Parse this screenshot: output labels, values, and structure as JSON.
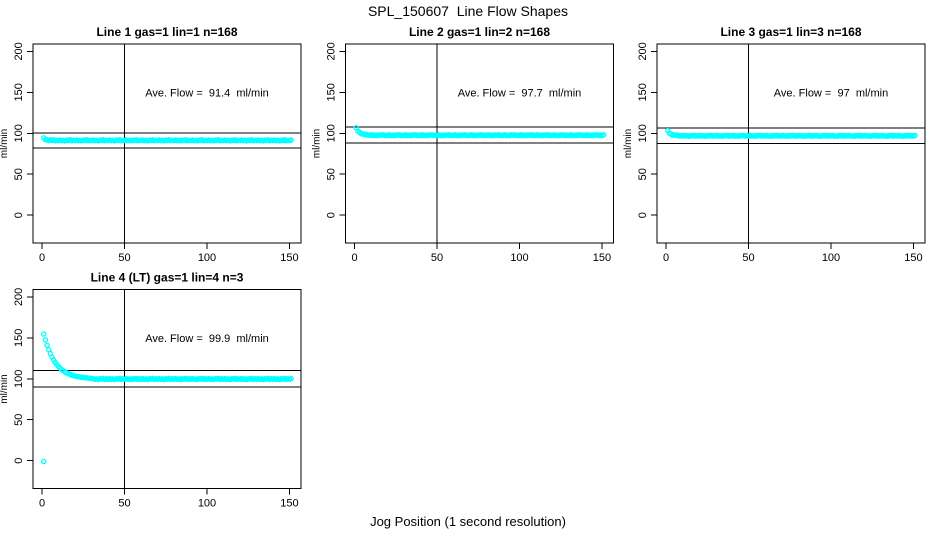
{
  "chart_data": {
    "type": "scatter",
    "title": "SPL_150607  Line Flow Shapes",
    "xlabel": "Jog Position (1 second resolution)",
    "ylabel": "ml/min",
    "point_color": "#00FFFF",
    "axis_color": "#000000",
    "background_color": "#FFFFFF",
    "xlim": [
      -5.5,
      157
    ],
    "ylim": [
      -34,
      209
    ],
    "x_ticks": [
      0,
      50,
      100,
      150
    ],
    "y_ticks": [
      0,
      50,
      100,
      150,
      200
    ],
    "x_tick_labels": [
      "0",
      "50",
      "100",
      "150"
    ],
    "y_tick_labels": [
      "0",
      "50",
      "100",
      "150",
      "200"
    ],
    "grid": false,
    "legend": "none",
    "vline_x": 50,
    "annotation_xy": [
      100,
      150
    ],
    "panels": [
      {
        "title": "Line 1 gas=1 lin=1 n=168",
        "ave_flow": 91.4,
        "ave_flow_label": "Ave. Flow =  91.4  ml/min",
        "hline_upper": 100.5,
        "hline_lower": 82.3,
        "series": {
          "x_start": 1,
          "x_step": 1,
          "y": [
            94.3,
            92.2,
            92.1,
            91.0,
            91.9,
            91.3,
            92.0,
            90.8,
            91.5,
            91.0,
            91.8,
            90.9,
            91.4,
            90.7,
            91.7,
            91.2,
            92.0,
            90.8,
            91.5,
            91.0,
            91.8,
            90.9,
            91.4,
            90.7,
            91.7,
            91.2,
            92.0,
            90.8,
            91.5,
            91.0,
            91.8,
            90.9,
            91.4,
            90.7,
            91.7,
            91.2,
            92.0,
            90.8,
            91.5,
            91.0,
            91.8,
            90.9,
            91.4,
            90.7,
            91.7,
            91.2,
            92.0,
            90.8,
            91.5,
            91.0,
            91.8,
            90.9,
            91.4,
            90.7,
            91.7,
            91.2,
            92.0,
            90.8,
            91.5,
            91.0,
            91.8,
            90.9,
            91.4,
            90.7,
            91.7,
            91.2,
            92.0,
            90.8,
            91.5,
            91.0,
            91.8,
            90.9,
            91.4,
            90.7,
            91.7,
            91.2,
            92.0,
            90.8,
            91.5,
            91.0,
            91.8,
            90.9,
            91.4,
            90.7,
            91.7,
            91.2,
            92.0,
            90.8,
            91.5,
            91.0,
            91.8,
            90.9,
            91.4,
            90.7,
            91.7,
            91.2,
            92.0,
            90.8,
            91.5,
            91.0,
            91.8,
            90.9,
            91.4,
            90.7,
            91.7,
            91.2,
            92.0,
            90.8,
            91.5,
            91.0,
            91.8,
            90.9,
            91.4,
            90.7,
            91.7,
            91.2,
            92.0,
            90.8,
            91.5,
            91.0,
            91.8,
            90.9,
            91.4,
            90.7,
            91.7,
            91.2,
            92.0,
            90.8,
            91.5,
            91.0,
            91.8,
            90.9,
            91.4,
            90.7,
            91.7,
            91.2,
            92.0,
            90.8,
            91.5,
            91.0,
            91.8,
            90.9,
            91.4,
            90.7,
            91.7,
            91.2,
            92.0,
            90.8,
            91.5,
            91.0,
            91.8
          ]
        },
        "extra_points": []
      },
      {
        "title": "Line 2 gas=1 lin=2 n=168",
        "ave_flow": 97.7,
        "ave_flow_label": "Ave. Flow =  97.7  ml/min",
        "hline_upper": 107.5,
        "hline_lower": 87.9,
        "series": {
          "x_start": 1,
          "x_step": 1,
          "y": [
            106.7,
            102.7,
            101.2,
            99.3,
            99.4,
            98.4,
            98.9,
            97.5,
            98.0,
            97.4,
            98.1,
            97.2,
            97.7,
            97.0,
            98.0,
            97.5,
            98.3,
            97.1,
            97.8,
            97.3,
            98.1,
            97.2,
            97.7,
            97.0,
            98.0,
            97.5,
            98.3,
            97.1,
            97.8,
            97.3,
            98.1,
            97.2,
            97.7,
            97.0,
            98.0,
            97.5,
            98.3,
            97.1,
            97.8,
            97.3,
            98.1,
            97.2,
            97.7,
            97.0,
            98.0,
            97.5,
            98.3,
            97.1,
            97.8,
            97.3,
            98.1,
            97.2,
            97.7,
            97.0,
            98.0,
            97.5,
            98.3,
            97.1,
            97.8,
            97.3,
            98.1,
            97.2,
            97.7,
            97.0,
            98.0,
            97.5,
            98.3,
            97.1,
            97.8,
            97.3,
            98.1,
            97.2,
            97.7,
            97.0,
            98.0,
            97.5,
            98.3,
            97.1,
            97.8,
            97.3,
            98.1,
            97.2,
            97.7,
            97.0,
            98.0,
            97.5,
            98.3,
            97.1,
            97.8,
            97.3,
            98.1,
            97.2,
            97.7,
            97.0,
            98.0,
            97.5,
            98.3,
            97.1,
            97.8,
            97.3,
            98.1,
            97.2,
            97.7,
            97.0,
            98.0,
            97.5,
            98.3,
            97.1,
            97.8,
            97.3,
            98.1,
            97.2,
            97.7,
            97.0,
            98.0,
            97.5,
            98.3,
            97.1,
            97.8,
            97.3,
            98.1,
            97.2,
            97.7,
            97.0,
            98.0,
            97.5,
            98.3,
            97.1,
            97.8,
            97.3,
            98.1,
            97.2,
            97.7,
            97.0,
            98.0,
            97.5,
            98.3,
            97.1,
            97.8,
            97.3,
            98.1,
            97.2,
            97.7,
            97.0,
            98.0,
            97.5,
            98.3,
            97.1,
            97.8,
            97.3,
            98.1
          ]
        },
        "extra_points": []
      },
      {
        "title": "Line 3 gas=1 lin=3 n=168",
        "ave_flow": 97,
        "ave_flow_label": "Ave. Flow =  97  ml/min",
        "hline_upper": 106.7,
        "hline_lower": 87.3,
        "series": {
          "x_start": 1,
          "x_step": 1,
          "y": [
            103.2,
            100.0,
            99.1,
            97.6,
            98.1,
            97.3,
            97.9,
            96.6,
            97.2,
            96.6,
            97.4,
            96.5,
            97.0,
            96.3,
            97.3,
            96.8,
            97.6,
            96.4,
            97.1,
            96.6,
            97.4,
            96.5,
            97.0,
            96.3,
            97.3,
            96.8,
            97.6,
            96.4,
            97.1,
            96.6,
            97.4,
            96.5,
            97.0,
            96.3,
            97.3,
            96.8,
            97.6,
            96.4,
            97.1,
            96.6,
            97.4,
            96.5,
            97.0,
            96.3,
            97.3,
            96.8,
            97.6,
            96.4,
            97.1,
            96.6,
            97.4,
            96.5,
            97.0,
            96.3,
            97.3,
            96.8,
            97.6,
            96.4,
            97.1,
            96.6,
            97.4,
            96.5,
            97.0,
            96.3,
            97.3,
            96.8,
            97.6,
            96.4,
            97.1,
            96.6,
            97.4,
            96.5,
            97.0,
            96.3,
            97.3,
            96.8,
            97.6,
            96.4,
            97.1,
            96.6,
            97.4,
            96.5,
            97.0,
            96.3,
            97.3,
            96.8,
            97.6,
            96.4,
            97.1,
            96.6,
            97.4,
            96.5,
            97.0,
            96.3,
            97.3,
            96.8,
            97.6,
            96.4,
            97.1,
            96.6,
            97.4,
            96.5,
            97.0,
            96.3,
            97.3,
            96.8,
            97.6,
            96.4,
            97.1,
            96.6,
            97.4,
            96.5,
            97.0,
            96.3,
            97.3,
            96.8,
            97.6,
            96.4,
            97.1,
            96.6,
            97.4,
            96.5,
            97.0,
            96.3,
            97.3,
            96.8,
            97.6,
            96.4,
            97.1,
            96.6,
            97.4,
            96.5,
            97.0,
            96.3,
            97.3,
            96.8,
            97.6,
            96.4,
            97.1,
            96.6,
            97.4,
            96.5,
            97.0,
            96.3,
            97.3,
            96.8,
            97.6,
            96.4,
            97.1,
            96.6,
            97.4
          ]
        },
        "extra_points": []
      },
      {
        "title": "Line 4 (LT) gas=1 lin=4 n=3",
        "ave_flow": 99.9,
        "ave_flow_label": "Ave. Flow =  99.9  ml/min",
        "hline_upper": 109.9,
        "hline_lower": 89.9,
        "series": {
          "x_start": 1,
          "x_step": 1,
          "y": [
            154.7,
            147.4,
            141.0,
            135.5,
            130.8,
            126.6,
            123.0,
            119.9,
            117.2,
            114.9,
            112.9,
            111.1,
            109.6,
            108.3,
            107.1,
            106.2,
            105.3,
            104.5,
            103.9,
            103.3,
            102.9,
            102.4,
            102.1,
            101.7,
            101.5,
            101.2,
            101.0,
            100.9,
            100.7,
            100.6,
            100.2,
            99.3,
            99.8,
            99.1,
            100.1,
            99.6,
            100.4,
            99.2,
            99.9,
            99.4,
            100.2,
            99.3,
            99.8,
            99.1,
            100.1,
            99.6,
            100.4,
            99.2,
            99.9,
            99.4,
            100.2,
            99.3,
            99.8,
            99.1,
            100.1,
            99.6,
            100.4,
            99.2,
            99.9,
            99.4,
            100.2,
            99.3,
            99.8,
            99.1,
            100.1,
            99.6,
            100.4,
            99.2,
            99.9,
            99.4,
            100.2,
            99.3,
            99.8,
            99.1,
            100.1,
            99.6,
            100.4,
            99.2,
            99.9,
            99.4,
            100.2,
            99.3,
            99.8,
            99.1,
            100.1,
            99.6,
            100.4,
            99.2,
            99.9,
            99.4,
            100.2,
            99.3,
            99.8,
            99.1,
            100.1,
            99.6,
            100.4,
            99.2,
            99.9,
            99.4,
            100.2,
            99.3,
            99.8,
            99.1,
            100.1,
            99.6,
            100.4,
            99.2,
            99.9,
            99.4,
            100.2,
            99.3,
            99.8,
            99.1,
            100.1,
            99.6,
            100.4,
            99.2,
            99.9,
            99.4,
            100.2,
            99.3,
            99.8,
            99.1,
            100.1,
            99.6,
            100.4,
            99.2,
            99.9,
            99.4,
            100.2,
            99.3,
            99.8,
            99.1,
            100.1,
            99.6,
            100.4,
            99.2,
            99.9,
            99.4,
            100.2,
            99.3,
            99.8,
            99.1,
            100.1,
            99.6,
            100.4,
            99.2,
            99.9,
            99.4,
            100.2
          ]
        },
        "extra_points": [
          [
            1,
            -1
          ]
        ]
      }
    ]
  }
}
